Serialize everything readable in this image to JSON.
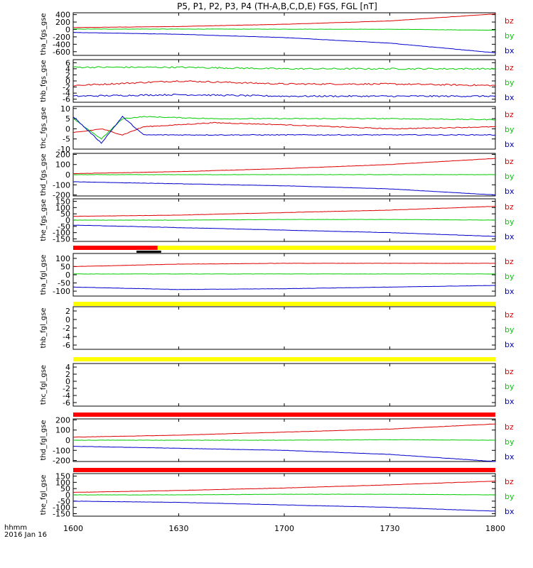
{
  "title": "P5, P1, P2, P3, P4 (TH-A,B,C,D,E) FGS, FGL [nT]",
  "footer": {
    "time_unit": "hhmm",
    "date": "2016 Jan 16"
  },
  "colors": {
    "bz": "#dd0000",
    "by": "#00cc00",
    "bx": "#0000cc",
    "bar_red": "#ff0000",
    "bar_yellow": "#ffff00",
    "bar_black": "#000000"
  },
  "chart_data": {
    "type": "line",
    "x_ticks": [
      "1600",
      "1630",
      "1700",
      "1730",
      "1800"
    ],
    "x_range": [
      "16:00",
      "18:00"
    ],
    "panels": [
      {
        "ylabel": "tha_fgs_gse",
        "ylim": [
          -700,
          450
        ],
        "yticks": [
          "400",
          "200",
          "0",
          "-200",
          "-400",
          "-600"
        ],
        "yvals": [
          400,
          200,
          0,
          -200,
          -400,
          -600
        ],
        "series": [
          {
            "name": "bz",
            "x": [
              0,
              30,
              60,
              90,
              120
            ],
            "values": [
              50,
              80,
              140,
              230,
              420
            ]
          },
          {
            "name": "by",
            "x": [
              0,
              30,
              60,
              90,
              120
            ],
            "values": [
              10,
              10,
              8,
              5,
              -20
            ]
          },
          {
            "name": "bx",
            "x": [
              0,
              30,
              60,
              90,
              120
            ],
            "values": [
              -80,
              -130,
              -220,
              -370,
              -630
            ]
          }
        ]
      },
      {
        "ylabel": "thb_fgs_gse",
        "ylim": [
          -7,
          7
        ],
        "yticks": [
          "6",
          "4",
          "2",
          "0",
          "-2",
          "-4",
          "-6"
        ],
        "yvals": [
          6,
          4,
          2,
          0,
          -2,
          -4,
          -6
        ],
        "series": [
          {
            "name": "bz",
            "x": [
              0,
              30,
              60,
              90,
              120
            ],
            "values": [
              -1.5,
              0,
              -1,
              -1,
              -1.5
            ]
          },
          {
            "name": "by",
            "x": [
              0,
              30,
              60,
              90,
              120
            ],
            "values": [
              4.5,
              4.5,
              4,
              4,
              4
            ]
          },
          {
            "name": "bx",
            "x": [
              0,
              30,
              60,
              90,
              120
            ],
            "values": [
              -5,
              -4.5,
              -5,
              -5,
              -5
            ]
          }
        ]
      },
      {
        "ylabel": "thc_fgs_gse",
        "ylim": [
          -10,
          11
        ],
        "yticks": [
          "10",
          "5",
          "0",
          "-5",
          "-10"
        ],
        "yvals": [
          10,
          5,
          0,
          -5,
          -10
        ],
        "series": [
          {
            "name": "bz",
            "x": [
              0,
              8,
              14,
              20,
              40,
              60,
              90,
              120
            ],
            "values": [
              -2,
              0,
              -3,
              1,
              3,
              2,
              0,
              1
            ]
          },
          {
            "name": "by",
            "x": [
              0,
              8,
              14,
              20,
              40,
              60,
              90,
              120
            ],
            "values": [
              5,
              -5,
              5,
              6,
              5,
              5,
              5,
              4.5
            ]
          },
          {
            "name": "bx",
            "x": [
              0,
              8,
              14,
              20,
              40,
              60,
              90,
              120
            ],
            "values": [
              6,
              -7,
              6,
              -3,
              -3,
              -3,
              -3,
              -3
            ]
          }
        ]
      },
      {
        "ylabel": "thd_fgs_gse",
        "ylim": [
          -210,
          210
        ],
        "yticks": [
          "200",
          "100",
          "0",
          "-100",
          "-200"
        ],
        "yvals": [
          200,
          100,
          0,
          -100,
          -200
        ],
        "series": [
          {
            "name": "bz",
            "x": [
              0,
              30,
              60,
              90,
              120
            ],
            "values": [
              10,
              30,
              60,
              100,
              160
            ]
          },
          {
            "name": "by",
            "x": [
              0,
              30,
              60,
              90,
              120
            ],
            "values": [
              0,
              0,
              0,
              0,
              0
            ]
          },
          {
            "name": "bx",
            "x": [
              0,
              30,
              60,
              90,
              120
            ],
            "values": [
              -70,
              -90,
              -110,
              -140,
              -200
            ]
          }
        ]
      },
      {
        "ylabel": "the_fgs_gse",
        "ylim": [
          -170,
          170
        ],
        "yticks": [
          "150",
          "100",
          "50",
          "0",
          "-50",
          "-100",
          "-150"
        ],
        "yvals": [
          150,
          100,
          50,
          0,
          -50,
          -100,
          -150
        ],
        "series": [
          {
            "name": "bz",
            "x": [
              0,
              30,
              60,
              90,
              120
            ],
            "values": [
              30,
              40,
              60,
              80,
              110
            ]
          },
          {
            "name": "by",
            "x": [
              0,
              30,
              60,
              90,
              120
            ],
            "values": [
              0,
              0,
              5,
              5,
              0
            ]
          },
          {
            "name": "bx",
            "x": [
              0,
              30,
              60,
              90,
              120
            ],
            "values": [
              -40,
              -60,
              -80,
              -100,
              -130
            ]
          }
        ]
      },
      {
        "ylabel": "tha_fgl_gse",
        "ylim": [
          -130,
          130
        ],
        "yticks": [
          "100",
          "50",
          "0",
          "-50",
          "-100"
        ],
        "yvals": [
          100,
          50,
          0,
          -50,
          -100
        ],
        "series": [
          {
            "name": "bz",
            "x": [
              0,
              30,
              60,
              90,
              120
            ],
            "values": [
              50,
              65,
              70,
              70,
              70
            ]
          },
          {
            "name": "by",
            "x": [
              0,
              30,
              60,
              90,
              120
            ],
            "values": [
              5,
              5,
              5,
              5,
              5
            ]
          },
          {
            "name": "bx",
            "x": [
              0,
              30,
              60,
              90,
              120
            ],
            "values": [
              -75,
              -90,
              -85,
              -75,
              -65
            ]
          }
        ]
      },
      {
        "ylabel": "thb_fgl_gse",
        "ylim": [
          -7,
          3
        ],
        "yticks": [
          "2",
          "0",
          "-2",
          "-4",
          "-6"
        ],
        "yvals": [
          2,
          0,
          -2,
          -4,
          -6
        ],
        "series": []
      },
      {
        "ylabel": "thc_fgl_gse",
        "ylim": [
          -7,
          5
        ],
        "yticks": [
          "4",
          "2",
          "0",
          "-2",
          "-4",
          "-6"
        ],
        "yvals": [
          4,
          2,
          0,
          -2,
          -4,
          -6
        ],
        "series": []
      },
      {
        "ylabel": "thd_fgl_gse",
        "ylim": [
          -210,
          210
        ],
        "yticks": [
          "200",
          "100",
          "0",
          "-100",
          "-200"
        ],
        "yvals": [
          200,
          100,
          0,
          -100,
          -200
        ],
        "series": [
          {
            "name": "bz",
            "x": [
              0,
              30,
              60,
              90,
              120
            ],
            "values": [
              30,
              50,
              80,
              110,
              160
            ]
          },
          {
            "name": "by",
            "x": [
              0,
              30,
              60,
              90,
              120
            ],
            "values": [
              0,
              0,
              0,
              5,
              0
            ]
          },
          {
            "name": "bx",
            "x": [
              0,
              30,
              60,
              90,
              120
            ],
            "values": [
              -60,
              -80,
              -100,
              -140,
              -210
            ]
          }
        ]
      },
      {
        "ylabel": "the_fgl_gse",
        "ylim": [
          -170,
          170
        ],
        "yticks": [
          "150",
          "100",
          "50",
          "0",
          "-50",
          "-100",
          "-150"
        ],
        "yvals": [
          150,
          100,
          50,
          0,
          -50,
          -100,
          -150
        ],
        "series": [
          {
            "name": "bz",
            "x": [
              0,
              30,
              60,
              90,
              120
            ],
            "values": [
              20,
              35,
              55,
              80,
              110
            ]
          },
          {
            "name": "by",
            "x": [
              0,
              30,
              60,
              90,
              120
            ],
            "values": [
              0,
              0,
              5,
              5,
              0
            ]
          },
          {
            "name": "bx",
            "x": [
              0,
              30,
              60,
              90,
              120
            ],
            "values": [
              -50,
              -60,
              -80,
              -100,
              -130
            ]
          }
        ]
      }
    ],
    "legend": [
      "bz",
      "by",
      "bx"
    ],
    "status_bars": [
      {
        "after_panel": 4,
        "segments": [
          {
            "color": "red",
            "x": [
              0,
              24
            ]
          },
          {
            "color": "yellow",
            "x": [
              24,
              120
            ]
          },
          {
            "color": "black",
            "x": [
              18,
              25
            ],
            "row": "below"
          }
        ]
      },
      {
        "after_panel": 5,
        "segments": [
          {
            "color": "yellow",
            "x": [
              0,
              120
            ]
          }
        ]
      },
      {
        "after_panel": 6,
        "segments": [
          {
            "color": "yellow",
            "x": [
              0,
              120
            ]
          }
        ]
      },
      {
        "after_panel": 7,
        "segments": [
          {
            "color": "red",
            "x": [
              0,
              120
            ]
          }
        ]
      },
      {
        "after_panel": 8,
        "segments": [
          {
            "color": "red",
            "x": [
              0,
              120
            ]
          }
        ]
      }
    ]
  }
}
